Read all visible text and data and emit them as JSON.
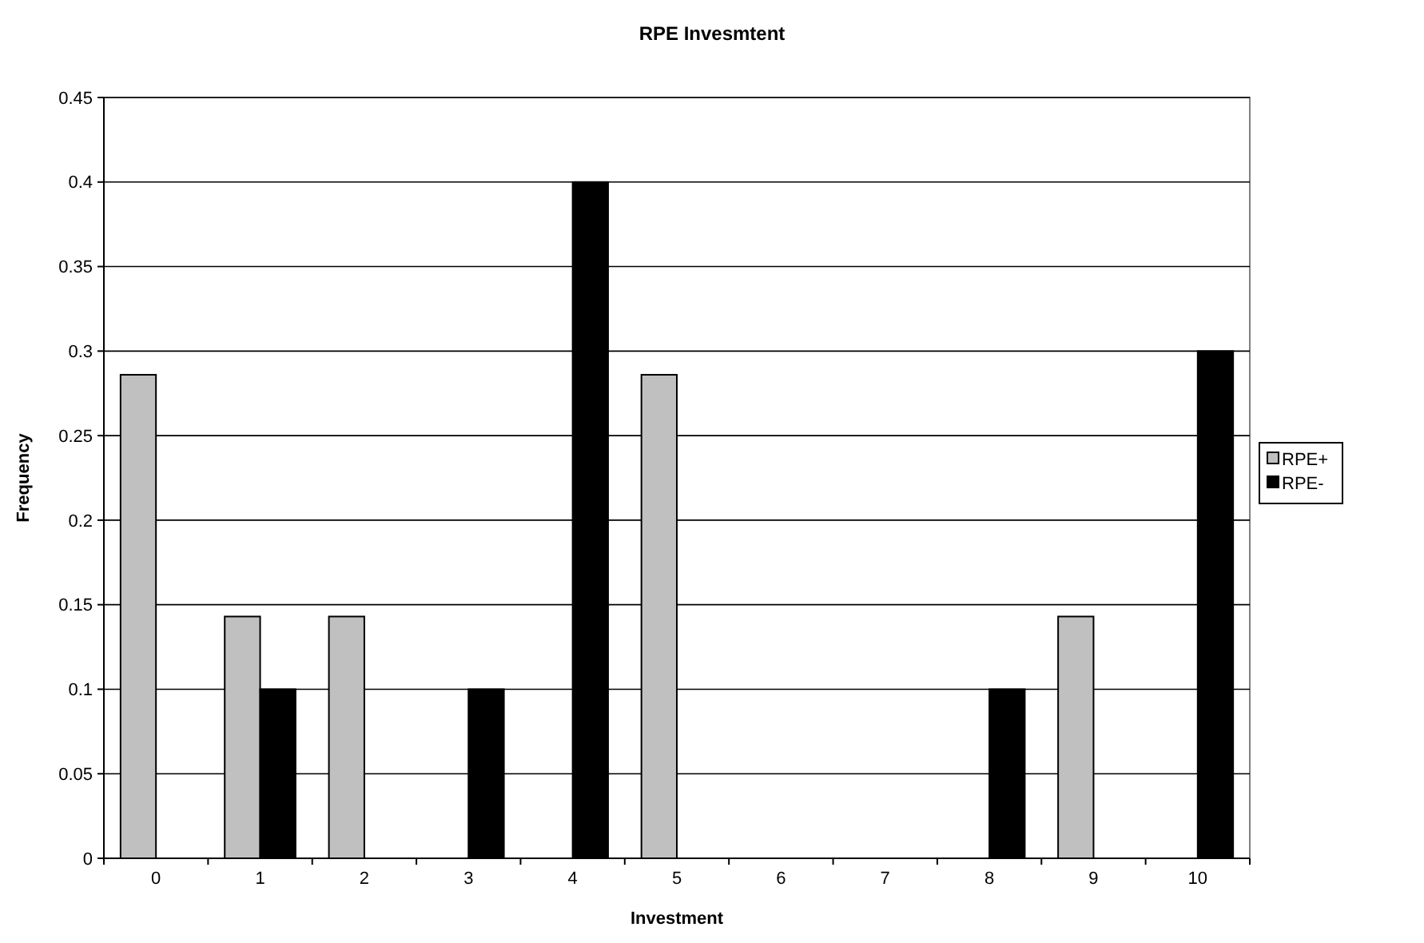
{
  "chart_data": {
    "type": "bar",
    "title": "RPE Invesmtent",
    "xlabel": "Investment",
    "ylabel": "Frequency",
    "categories": [
      "0",
      "1",
      "2",
      "3",
      "4",
      "5",
      "6",
      "7",
      "8",
      "9",
      "10"
    ],
    "series": [
      {
        "name": "RPE+",
        "color": "#c0c0c0",
        "values": [
          0.286,
          0.143,
          0.143,
          0,
          0,
          0.286,
          0,
          0,
          0,
          0.143,
          0
        ]
      },
      {
        "name": "RPE-",
        "color": "#000000",
        "values": [
          0,
          0.1,
          0,
          0.1,
          0.4,
          0,
          0,
          0,
          0.1,
          0,
          0.3
        ]
      }
    ],
    "ylim": [
      0,
      0.45
    ],
    "yticks": [
      0,
      0.05,
      0.1,
      0.15,
      0.2,
      0.25,
      0.3,
      0.35,
      0.4,
      0.45
    ],
    "grid": "y",
    "legend": "right"
  }
}
